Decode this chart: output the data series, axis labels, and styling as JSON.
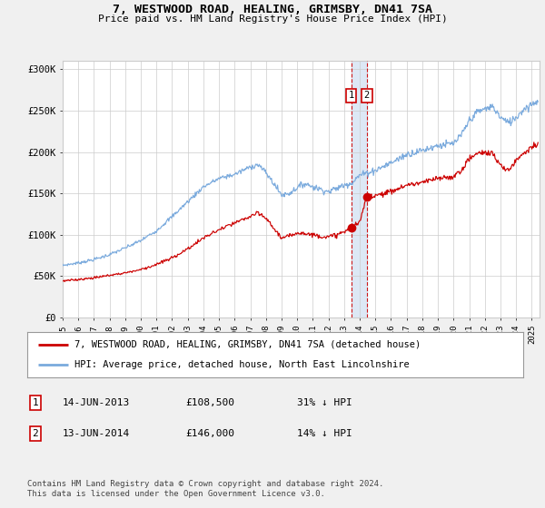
{
  "title": "7, WESTWOOD ROAD, HEALING, GRIMSBY, DN41 7SA",
  "subtitle": "Price paid vs. HM Land Registry's House Price Index (HPI)",
  "legend_line1": "7, WESTWOOD ROAD, HEALING, GRIMSBY, DN41 7SA (detached house)",
  "legend_line2": "HPI: Average price, detached house, North East Lincolnshire",
  "transaction1_date": "14-JUN-2013",
  "transaction1_price": "£108,500",
  "transaction1_hpi": "31% ↓ HPI",
  "transaction2_date": "13-JUN-2014",
  "transaction2_price": "£146,000",
  "transaction2_hpi": "14% ↓ HPI",
  "footer": "Contains HM Land Registry data © Crown copyright and database right 2024.\nThis data is licensed under the Open Government Licence v3.0.",
  "ylim": [
    0,
    310000
  ],
  "yticks": [
    0,
    50000,
    100000,
    150000,
    200000,
    250000,
    300000
  ],
  "ytick_labels": [
    "£0",
    "£50K",
    "£100K",
    "£150K",
    "£200K",
    "£250K",
    "£300K"
  ],
  "red_color": "#cc0000",
  "blue_color": "#7aaadd",
  "band_color": "#dde8f5",
  "background_color": "#f0f0f0",
  "plot_bg_color": "#ffffff",
  "grid_color": "#cccccc",
  "transaction1_x": 2013.45,
  "transaction1_y": 108500,
  "transaction2_x": 2014.45,
  "transaction2_y": 146000,
  "xlim_left": 1995,
  "xlim_right": 2025.5
}
